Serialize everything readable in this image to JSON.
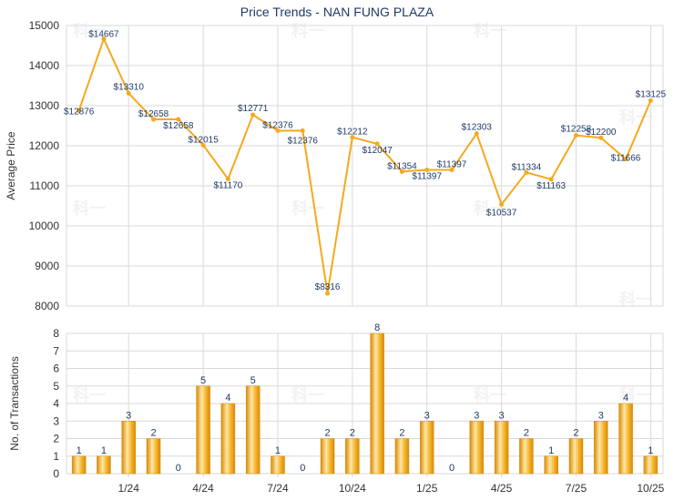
{
  "title": "Price Trends - NAN FUNG PLAZA",
  "watermark": "科一",
  "colors": {
    "line": "#f5a91c",
    "bar_light": "#fde7a6",
    "bar_mid": "#f5b52e",
    "bar_dark": "#d98a06",
    "label": "#1f3a66",
    "grid": "#d9d9d9",
    "axis": "#666666"
  },
  "chart_data": [
    {
      "type": "line",
      "ylabel": "Average Price",
      "ylim": [
        8000,
        15000
      ],
      "yticks": [
        8000,
        9000,
        10000,
        11000,
        12000,
        13000,
        14000,
        15000
      ],
      "grid": true,
      "point_labels": [
        "$12876",
        "$14667",
        "$13310",
        "$12658",
        "$12658",
        "$12015",
        "$11170",
        "$12771",
        "$12376",
        "$12376",
        "$8316",
        "$12212",
        "$12047",
        "$11354",
        "$11397",
        "$11397",
        "$12303",
        "$10537",
        "$11334",
        "$11163",
        "$12258",
        "$12200",
        "$11666",
        "$13125"
      ],
      "values": [
        12876,
        14667,
        13310,
        12658,
        12658,
        12015,
        11170,
        12771,
        12376,
        12376,
        8316,
        12212,
        12047,
        11354,
        11397,
        11397,
        12303,
        10537,
        11334,
        11163,
        12258,
        12200,
        11666,
        13125
      ]
    },
    {
      "type": "bar",
      "ylabel": "No. of Transactions",
      "ylim": [
        0,
        8
      ],
      "yticks": [
        0,
        1,
        2,
        3,
        4,
        5,
        6,
        7,
        8
      ],
      "grid": true,
      "x_tick_labels": [
        "1/24",
        "4/24",
        "7/24",
        "10/24",
        "1/25",
        "4/25",
        "7/25",
        "10/25"
      ],
      "values": [
        1,
        1,
        3,
        2,
        0,
        5,
        4,
        5,
        1,
        0,
        2,
        2,
        8,
        2,
        3,
        0,
        3,
        3,
        2,
        1,
        2,
        3,
        4,
        1
      ]
    }
  ]
}
